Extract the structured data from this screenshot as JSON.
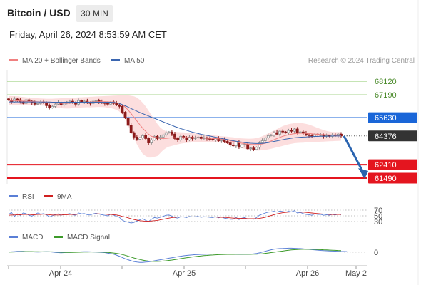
{
  "header": {
    "title": "Bitcoin / USD",
    "timeframe": "30 MIN",
    "datetime": "Friday, April 26, 2024 8:53:59 AM CET",
    "credit": "Research © 2024 Trading Central"
  },
  "legend": {
    "ma20": "MA 20 + Bollinger Bands",
    "ma50": "MA 50",
    "rsi": "RSI",
    "rsi_ma": "9MA",
    "macd": "MACD",
    "macd_signal": "MACD Signal"
  },
  "colors": {
    "ma20": "#f08080",
    "bollinger": "#fbd3d3",
    "ma50": "#3a66b0",
    "resistance": "#8bc86a",
    "pivot": "#1a66d8",
    "support": "#e4151f",
    "current": "#333333",
    "candle_up": "#8a8a8a",
    "candle_down": "#8b1a1a",
    "rsi": "#5a7fd6",
    "rsi_ma": "#d02020",
    "macd": "#5a7fd6",
    "macd_signal": "#3d9a2a",
    "arrow": "#2a64b0"
  },
  "chart_data": [
    {
      "type": "candlestick",
      "title": "Bitcoin / USD",
      "x_tick_labels": [
        "Apr 24",
        "Apr 25",
        "Apr 26",
        "May 2"
      ],
      "levels": [
        {
          "value": 68120,
          "label": "68120",
          "kind": "resistance"
        },
        {
          "value": 67190,
          "label": "67190",
          "kind": "resistance"
        },
        {
          "value": 65630,
          "label": "65630",
          "kind": "pivot"
        },
        {
          "value": 64376,
          "label": "64376",
          "kind": "current"
        },
        {
          "value": 62410,
          "label": "62410",
          "kind": "support"
        },
        {
          "value": 61490,
          "label": "61490",
          "kind": "support"
        }
      ],
      "y_range": [
        61100,
        68900
      ],
      "series": [
        {
          "name": "Bitcoin / USD",
          "close": [
            66830,
            66700,
            66900,
            66850,
            66700,
            66600,
            66850,
            66750,
            66650,
            66550,
            66600,
            66700,
            66650,
            66450,
            66300,
            66400,
            66550,
            66650,
            66500,
            66600,
            66700,
            66750,
            66650,
            66550,
            66800,
            66700,
            66750,
            66650,
            66600,
            66750,
            66800,
            66700,
            66650,
            66600,
            66550,
            66700,
            66600,
            66500,
            66400,
            66000,
            65600,
            65100,
            64600,
            64300,
            64150,
            64250,
            64400,
            64200,
            63900,
            64100,
            64350,
            64200,
            64300,
            64450,
            64600,
            64650,
            64500,
            64200,
            64100,
            64350,
            64250,
            64100,
            64300,
            64200,
            64250,
            64300,
            64200,
            64250,
            64200,
            64150,
            64100,
            64200,
            64050,
            64150,
            64000,
            63900,
            63750,
            63700,
            63950,
            63600,
            63750,
            63800,
            63500,
            63550,
            63450,
            63600,
            63900,
            64050,
            64250,
            64400,
            64450,
            64600,
            64500,
            64700,
            64650,
            64600,
            64750,
            64700,
            64850,
            64600,
            64650,
            64550,
            64450,
            64400,
            64350,
            64500,
            64450,
            64450,
            64350,
            64400,
            64350,
            64450,
            64400,
            64500,
            64376
          ]
        }
      ],
      "ma20": [
        66800,
        66800,
        66790,
        66780,
        66770,
        66760,
        66750,
        66740,
        66730,
        66720,
        66710,
        66700,
        66690,
        66680,
        66670,
        66650,
        66630,
        66620,
        66610,
        66610,
        66610,
        66620,
        66630,
        66640,
        66660,
        66670,
        66680,
        66690,
        66690,
        66700,
        66710,
        66720,
        66720,
        66720,
        66710,
        66700,
        66680,
        66650,
        66600,
        66500,
        66350,
        66150,
        65900,
        65650,
        65400,
        65150,
        64900,
        64700,
        64500,
        64350,
        64300,
        64250,
        64200,
        64200,
        64210,
        64230,
        64250,
        64260,
        64260,
        64260,
        64270,
        64270,
        64270,
        64260,
        64260,
        64250,
        64240,
        64230,
        64220,
        64210,
        64200,
        64190,
        64180,
        64160,
        64130,
        64100,
        64050,
        64000,
        63960,
        63920,
        63880,
        63850,
        63820,
        63800,
        63790,
        63790,
        63800,
        63830,
        63880,
        63950,
        64030,
        64120,
        64200,
        64280,
        64350,
        64410,
        64460,
        64500,
        64530,
        64550,
        64560,
        64560,
        64550,
        64540,
        64520,
        64500,
        64490,
        64480,
        64470,
        64460,
        64450,
        64440,
        64430,
        64420,
        64410
      ],
      "bb_upper": [
        67100,
        67100,
        67090,
        67080,
        67060,
        67040,
        67020,
        67000,
        66980,
        66960,
        66950,
        66940,
        66930,
        66920,
        66920,
        66920,
        66930,
        66940,
        66950,
        66960,
        66970,
        66980,
        66990,
        67000,
        67010,
        67020,
        67030,
        67040,
        67050,
        67060,
        67070,
        67080,
        67090,
        67100,
        67110,
        67120,
        67130,
        67140,
        67150,
        67160,
        67160,
        67150,
        67120,
        67080,
        67000,
        66850,
        66650,
        66400,
        66100,
        65800,
        65500,
        65200,
        64950,
        64800,
        64700,
        64650,
        64650,
        64650,
        64640,
        64630,
        64620,
        64600,
        64580,
        64560,
        64540,
        64520,
        64500,
        64480,
        64460,
        64440,
        64420,
        64400,
        64380,
        64360,
        64340,
        64320,
        64300,
        64280,
        64250,
        64230,
        64210,
        64200,
        64190,
        64190,
        64200,
        64230,
        64280,
        64350,
        64450,
        64550,
        64650,
        64750,
        64850,
        64950,
        65050,
        65120,
        65180,
        65220,
        65250,
        65260,
        65260,
        65240,
        65200,
        65150,
        65080,
        65000,
        64920,
        64850,
        64780,
        64720,
        64680,
        64650,
        64640,
        64640,
        64640
      ],
      "bb_lower": [
        66500,
        66500,
        66490,
        66480,
        66480,
        66480,
        66480,
        66480,
        66480,
        66480,
        66470,
        66460,
        66450,
        66440,
        66420,
        66380,
        66330,
        66300,
        66270,
        66260,
        66250,
        66260,
        66270,
        66280,
        66310,
        66320,
        66330,
        66340,
        66330,
        66340,
        66350,
        66360,
        66350,
        66340,
        66310,
        66280,
        66230,
        66160,
        66050,
        65840,
        65540,
        65150,
        64680,
        64220,
        63800,
        63450,
        63150,
        63000,
        62900,
        62900,
        62950,
        63000,
        63200,
        63400,
        63550,
        63650,
        63700,
        63750,
        63800,
        63850,
        63880,
        63900,
        63920,
        63930,
        63940,
        63950,
        63950,
        63950,
        63950,
        63950,
        63950,
        63950,
        63950,
        63930,
        63900,
        63850,
        63780,
        63700,
        63640,
        63590,
        63540,
        63500,
        63460,
        63430,
        63400,
        63380,
        63380,
        63400,
        63420,
        63460,
        63500,
        63550,
        63600,
        63650,
        63700,
        63750,
        63800,
        63840,
        63880,
        63900,
        63910,
        63920,
        63930,
        63940,
        63950,
        63960,
        63970,
        63980,
        63990,
        64000,
        64010,
        64020,
        64030,
        64040,
        64050
      ],
      "ma50": [
        66700,
        66700,
        66700,
        66700,
        66700,
        66700,
        66700,
        66700,
        66700,
        66700,
        66700,
        66690,
        66690,
        66690,
        66690,
        66680,
        66680,
        66680,
        66680,
        66680,
        66680,
        66680,
        66680,
        66680,
        66680,
        66680,
        66680,
        66680,
        66680,
        66680,
        66680,
        66680,
        66680,
        66680,
        66680,
        66680,
        66670,
        66650,
        66600,
        66520,
        66440,
        66350,
        66250,
        66160,
        66070,
        65980,
        65900,
        65820,
        65740,
        65660,
        65580,
        65500,
        65420,
        65340,
        65260,
        65180,
        65100,
        65020,
        64950,
        64880,
        64820,
        64760,
        64700,
        64640,
        64590,
        64540,
        64490,
        64450,
        64410,
        64370,
        64330,
        64290,
        64250,
        64210,
        64170,
        64130,
        64090,
        64050,
        64010,
        63980,
        63950,
        63920,
        63900,
        63880,
        63870,
        63860,
        63860,
        63870,
        63890,
        63920,
        63960,
        64000,
        64040,
        64080,
        64120,
        64160,
        64190,
        64220,
        64250,
        64270,
        64290,
        64300,
        64310,
        64320,
        64330,
        64340,
        64340,
        64350,
        64350,
        64360,
        64360,
        64370,
        64370,
        64370,
        64370
      ]
    },
    {
      "type": "line",
      "title": "RSI",
      "y_ticks": [
        70,
        50,
        30
      ],
      "y_range": [
        20,
        80
      ],
      "series": [
        {
          "name": "RSI",
          "values": [
            55,
            62,
            48,
            57,
            52,
            60,
            58,
            52,
            49,
            55,
            60,
            56,
            58,
            54,
            46,
            50,
            55,
            57,
            52,
            55,
            56,
            58,
            54,
            52,
            60,
            57,
            58,
            54,
            53,
            57,
            59,
            56,
            54,
            52,
            50,
            56,
            53,
            48,
            45,
            35,
            30,
            28,
            25,
            27,
            32,
            36,
            40,
            34,
            30,
            38,
            44,
            42,
            45,
            48,
            52,
            53,
            49,
            44,
            42,
            47,
            46,
            44,
            48,
            46,
            47,
            48,
            45,
            47,
            46,
            45,
            44,
            47,
            43,
            46,
            42,
            40,
            38,
            38,
            45,
            37,
            42,
            44,
            38,
            40,
            38,
            44,
            52,
            56,
            60,
            63,
            64,
            66,
            63,
            67,
            65,
            63,
            66,
            64,
            68,
            60,
            62,
            58,
            55,
            54,
            52,
            57,
            55,
            55,
            52,
            54,
            52,
            55,
            53,
            56,
            54
          ]
        },
        {
          "name": "9MA",
          "values": [
            52,
            53,
            53,
            54,
            54,
            55,
            55,
            55,
            54,
            54,
            55,
            55,
            56,
            55,
            54,
            53,
            53,
            53,
            53,
            54,
            54,
            55,
            55,
            55,
            56,
            56,
            56,
            56,
            56,
            56,
            57,
            57,
            56,
            56,
            55,
            55,
            54,
            53,
            51,
            48,
            46,
            43,
            40,
            37,
            35,
            33,
            32,
            31,
            31,
            32,
            33,
            34,
            36,
            38,
            40,
            42,
            44,
            45,
            46,
            46,
            46,
            46,
            46,
            46,
            46,
            46,
            46,
            46,
            46,
            46,
            46,
            46,
            45,
            45,
            45,
            44,
            43,
            42,
            42,
            41,
            41,
            41,
            40,
            40,
            40,
            40,
            41,
            43,
            45,
            48,
            51,
            54,
            57,
            59,
            61,
            62,
            63,
            64,
            64,
            64,
            63,
            63,
            62,
            61,
            60,
            59,
            58,
            57,
            56,
            56,
            55,
            55,
            55,
            55,
            55
          ]
        }
      ]
    },
    {
      "type": "line",
      "title": "MACD",
      "y_ticks": [
        0
      ],
      "y_range": [
        -900,
        600
      ],
      "series": [
        {
          "name": "MACD",
          "values": [
            0,
            20,
            40,
            60,
            60,
            60,
            40,
            30,
            20,
            10,
            0,
            10,
            20,
            30,
            20,
            0,
            -20,
            -40,
            -50,
            -40,
            -30,
            -20,
            -10,
            0,
            10,
            20,
            30,
            30,
            20,
            10,
            0,
            -10,
            -20,
            -40,
            -80,
            -120,
            -160,
            -240,
            -320,
            -420,
            -520,
            -600,
            -680,
            -740,
            -780,
            -800,
            -800,
            -780,
            -760,
            -720,
            -680,
            -640,
            -600,
            -560,
            -520,
            -480,
            -440,
            -400,
            -360,
            -320,
            -290,
            -260,
            -240,
            -220,
            -200,
            -190,
            -180,
            -170,
            -160,
            -155,
            -150,
            -150,
            -150,
            -150,
            -155,
            -160,
            -165,
            -170,
            -175,
            -180,
            -180,
            -175,
            -170,
            -160,
            -140,
            -110,
            -60,
            0,
            60,
            120,
            180,
            220,
            250,
            270,
            280,
            290,
            300,
            300,
            290,
            280,
            270,
            250,
            230,
            210,
            190,
            170,
            150,
            130,
            110,
            100,
            90,
            80,
            70,
            60,
            50,
            45,
            40
          ]
        },
        {
          "name": "MACD Signal",
          "values": [
            0,
            0,
            10,
            20,
            30,
            40,
            40,
            40,
            40,
            35,
            30,
            25,
            25,
            25,
            25,
            20,
            10,
            0,
            -10,
            -15,
            -20,
            -20,
            -20,
            -15,
            -10,
            -5,
            0,
            5,
            10,
            10,
            10,
            5,
            0,
            -10,
            -25,
            -45,
            -70,
            -100,
            -140,
            -190,
            -250,
            -320,
            -390,
            -460,
            -520,
            -580,
            -630,
            -670,
            -700,
            -720,
            -730,
            -730,
            -720,
            -700,
            -680,
            -650,
            -620,
            -590,
            -550,
            -510,
            -480,
            -440,
            -410,
            -380,
            -350,
            -320,
            -300,
            -280,
            -260,
            -240,
            -225,
            -210,
            -200,
            -190,
            -185,
            -180,
            -178,
            -176,
            -175,
            -175,
            -175,
            -175,
            -175,
            -172,
            -168,
            -160,
            -145,
            -125,
            -100,
            -70,
            -40,
            -10,
            20,
            50,
            80,
            110,
            140,
            165,
            185,
            200,
            210,
            215,
            218,
            218,
            215,
            210,
            200,
            190,
            180,
            170,
            158,
            146,
            135,
            125,
            115
          ]
        }
      ]
    }
  ]
}
